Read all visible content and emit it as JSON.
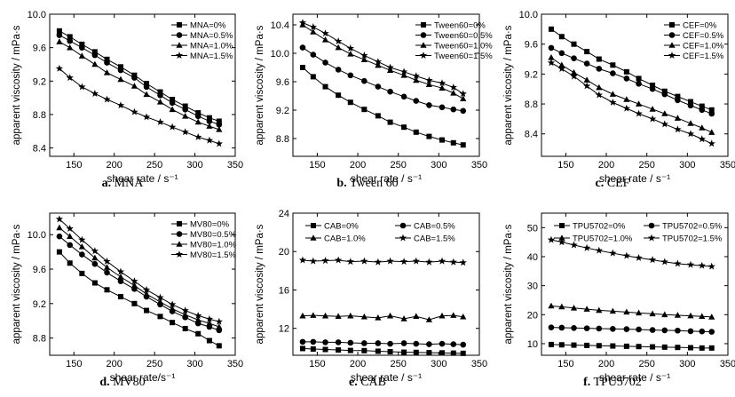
{
  "chart_data": [
    {
      "type": "line",
      "caption_letter": "a.",
      "caption_name": "MNA",
      "xlabel": "shear rate / s⁻¹",
      "ylabel": "apparent viscosity / mPa·s",
      "xlim": [
        120,
        350
      ],
      "ylim": [
        8.3,
        10.0
      ],
      "xticks": [
        150,
        200,
        250,
        300,
        350
      ],
      "yticks": [
        8.4,
        8.8,
        9.2,
        9.6,
        10.0
      ],
      "ytick_decimals": 1,
      "legend_columns": 1,
      "legend": "top-right",
      "x": [
        132,
        145,
        160,
        176,
        191,
        208,
        225,
        240,
        257,
        272,
        288,
        304,
        318,
        330
      ],
      "series": [
        {
          "name": "MNA=0%",
          "marker": "square",
          "values": [
            9.8,
            9.73,
            9.64,
            9.55,
            9.46,
            9.37,
            9.27,
            9.17,
            9.07,
            8.98,
            8.9,
            8.82,
            8.76,
            8.72
          ]
        },
        {
          "name": "MNA=0.5%",
          "marker": "circle",
          "values": [
            9.75,
            9.68,
            9.6,
            9.51,
            9.42,
            9.33,
            9.24,
            9.13,
            9.03,
            8.94,
            8.86,
            8.78,
            8.72,
            8.68
          ]
        },
        {
          "name": "MNA=1.0%",
          "marker": "triangle",
          "values": [
            9.67,
            9.6,
            9.5,
            9.4,
            9.3,
            9.22,
            9.14,
            9.04,
            8.95,
            8.86,
            8.78,
            8.71,
            8.66,
            8.62
          ]
        },
        {
          "name": "MNA=1.5%",
          "marker": "star",
          "values": [
            9.35,
            9.24,
            9.13,
            9.05,
            8.98,
            8.91,
            8.83,
            8.77,
            8.71,
            8.65,
            8.59,
            8.53,
            8.49,
            8.45
          ]
        }
      ]
    },
    {
      "type": "line",
      "caption_letter": "b.",
      "caption_name": "Tween 60",
      "xlabel": "shear rate / s⁻¹",
      "ylabel": "apparent viscosity / mPa·s",
      "xlim": [
        120,
        350
      ],
      "ylim": [
        8.55,
        10.55
      ],
      "xticks": [
        150,
        200,
        250,
        300,
        350
      ],
      "yticks": [
        8.8,
        9.2,
        9.6,
        10.0,
        10.4
      ],
      "ytick_decimals": 1,
      "legend_columns": 1,
      "legend": "top-right",
      "x": [
        132,
        145,
        160,
        176,
        191,
        208,
        225,
        240,
        257,
        272,
        288,
        304,
        318,
        330
      ],
      "series": [
        {
          "name": "Tween60=0%",
          "marker": "square",
          "values": [
            9.8,
            9.67,
            9.53,
            9.41,
            9.31,
            9.21,
            9.12,
            9.03,
            8.96,
            8.89,
            8.83,
            8.78,
            8.74,
            8.71
          ]
        },
        {
          "name": "Tween60=0.5%",
          "marker": "circle",
          "values": [
            10.08,
            9.98,
            9.87,
            9.77,
            9.69,
            9.61,
            9.53,
            9.46,
            9.39,
            9.33,
            9.27,
            9.24,
            9.21,
            9.19
          ]
        },
        {
          "name": "Tween60=1.0%",
          "marker": "triangle",
          "values": [
            10.4,
            10.3,
            10.19,
            10.08,
            9.99,
            9.91,
            9.83,
            9.76,
            9.69,
            9.62,
            9.56,
            9.51,
            9.44,
            9.36
          ]
        },
        {
          "name": "Tween60=1.5%",
          "marker": "star",
          "values": [
            10.43,
            10.37,
            10.28,
            10.17,
            10.07,
            9.97,
            9.88,
            9.8,
            9.74,
            9.68,
            9.62,
            9.58,
            9.52,
            9.43
          ]
        }
      ]
    },
    {
      "type": "line",
      "caption_letter": "c.",
      "caption_name": "CEF",
      "xlabel": "shear rate / s⁻¹",
      "ylabel": "apparent viscosity / mPa·s",
      "xlim": [
        120,
        350
      ],
      "ylim": [
        8.1,
        10.0
      ],
      "xticks": [
        150,
        200,
        250,
        300,
        350
      ],
      "yticks": [
        8.4,
        8.8,
        9.2,
        9.6,
        10.0
      ],
      "ytick_decimals": 1,
      "legend_columns": 1,
      "legend": "top-right",
      "x": [
        132,
        145,
        160,
        176,
        191,
        208,
        225,
        240,
        257,
        272,
        288,
        304,
        318,
        330
      ],
      "series": [
        {
          "name": "CEF=0%",
          "marker": "square",
          "values": [
            9.8,
            9.7,
            9.6,
            9.5,
            9.4,
            9.32,
            9.23,
            9.14,
            9.05,
            8.97,
            8.9,
            8.83,
            8.77,
            8.72
          ]
        },
        {
          "name": "CEF=0.5%",
          "marker": "circle",
          "values": [
            9.55,
            9.48,
            9.41,
            9.34,
            9.27,
            9.21,
            9.14,
            9.07,
            9.0,
            8.93,
            8.85,
            8.78,
            8.72,
            8.67
          ]
        },
        {
          "name": "CEF=1.0%",
          "marker": "triangle",
          "values": [
            9.42,
            9.32,
            9.22,
            9.12,
            9.02,
            8.93,
            8.86,
            8.8,
            8.73,
            8.67,
            8.61,
            8.54,
            8.48,
            8.42
          ]
        },
        {
          "name": "CEF=1.5%",
          "marker": "star",
          "values": [
            9.35,
            9.27,
            9.17,
            9.04,
            8.92,
            8.82,
            8.74,
            8.67,
            8.6,
            8.53,
            8.46,
            8.4,
            8.33,
            8.27
          ]
        }
      ]
    },
    {
      "type": "line",
      "caption_letter": "d.",
      "caption_name": "MV80",
      "xlabel": "shear rate/s⁻¹",
      "ylabel": "apparent viscosity / mPa·s",
      "xlim": [
        120,
        350
      ],
      "ylim": [
        8.6,
        10.25
      ],
      "xticks": [
        150,
        200,
        250,
        300,
        350
      ],
      "yticks": [
        8.8,
        9.2,
        9.6,
        10.0
      ],
      "ytick_decimals": 1,
      "legend_columns": 1,
      "legend": "top-right",
      "x": [
        132,
        145,
        160,
        176,
        191,
        208,
        225,
        240,
        257,
        272,
        288,
        304,
        318,
        330
      ],
      "series": [
        {
          "name": "MV80=0%",
          "marker": "square",
          "values": [
            9.8,
            9.67,
            9.55,
            9.44,
            9.36,
            9.28,
            9.2,
            9.12,
            9.05,
            8.98,
            8.91,
            8.85,
            8.77,
            8.71
          ]
        },
        {
          "name": "MV80=0.5%",
          "marker": "circle",
          "values": [
            9.98,
            9.88,
            9.77,
            9.66,
            9.56,
            9.46,
            9.37,
            9.28,
            9.19,
            9.11,
            9.04,
            8.97,
            8.93,
            8.89
          ]
        },
        {
          "name": "MV80=1.0%",
          "marker": "triangle",
          "values": [
            10.08,
            9.98,
            9.86,
            9.73,
            9.62,
            9.51,
            9.41,
            9.31,
            9.22,
            9.14,
            9.07,
            9.01,
            8.97,
            8.93
          ]
        },
        {
          "name": "MV80=1.5%",
          "marker": "star",
          "values": [
            10.18,
            10.07,
            9.94,
            9.81,
            9.69,
            9.57,
            9.46,
            9.36,
            9.27,
            9.19,
            9.12,
            9.06,
            9.02,
            8.99
          ]
        }
      ]
    },
    {
      "type": "line",
      "caption_letter": "e.",
      "caption_name": "CAB",
      "xlabel": "shear rate / s⁻¹",
      "ylabel": "apparent viscosity / mPa·s",
      "xlim": [
        120,
        350
      ],
      "ylim": [
        9.2,
        24
      ],
      "xticks": [
        150,
        200,
        250,
        300,
        350
      ],
      "yticks": [
        12,
        16,
        20,
        24
      ],
      "ytick_decimals": 0,
      "legend_columns": 2,
      "legend": "top",
      "x": [
        132,
        145,
        160,
        176,
        191,
        208,
        225,
        240,
        257,
        272,
        288,
        304,
        318,
        330
      ],
      "series": [
        {
          "name": "CAB=0%",
          "marker": "square",
          "values": [
            9.9,
            9.85,
            9.8,
            9.75,
            9.7,
            9.68,
            9.62,
            9.57,
            9.52,
            9.5,
            9.47,
            9.45,
            9.42,
            9.4
          ]
        },
        {
          "name": "CAB=0.5%",
          "marker": "circle",
          "values": [
            10.6,
            10.6,
            10.55,
            10.55,
            10.5,
            10.45,
            10.45,
            10.4,
            10.45,
            10.4,
            10.35,
            10.4,
            10.35,
            10.3
          ]
        },
        {
          "name": "CAB=1.0%",
          "marker": "triangle",
          "values": [
            13.3,
            13.35,
            13.3,
            13.25,
            13.3,
            13.2,
            13.1,
            13.3,
            13.0,
            13.25,
            12.9,
            13.3,
            13.35,
            13.2
          ]
        },
        {
          "name": "CAB=1.5%",
          "marker": "star",
          "values": [
            19.1,
            19.0,
            19.05,
            19.1,
            18.95,
            19.0,
            18.9,
            19.0,
            18.95,
            19.0,
            18.9,
            19.0,
            18.9,
            18.85
          ]
        }
      ]
    },
    {
      "type": "line",
      "caption_letter": "f.",
      "caption_name": "TPU5702",
      "xlabel": "shear rate / s⁻¹",
      "ylabel": "apparent viscosity / mPa·s",
      "xlim": [
        120,
        350
      ],
      "ylim": [
        6,
        55
      ],
      "xticks": [
        150,
        200,
        250,
        300,
        350
      ],
      "yticks": [
        10,
        20,
        30,
        40,
        50
      ],
      "ytick_decimals": 0,
      "legend_columns": 2,
      "legend": "top",
      "x": [
        132,
        145,
        160,
        176,
        191,
        208,
        225,
        240,
        257,
        272,
        288,
        304,
        318,
        330
      ],
      "series": [
        {
          "name": "TPU5702=0%",
          "marker": "square",
          "values": [
            9.7,
            9.6,
            9.5,
            9.4,
            9.3,
            9.2,
            9.1,
            9.0,
            8.9,
            8.8,
            8.7,
            8.6,
            8.5,
            8.5
          ]
        },
        {
          "name": "TPU5702=0.5%",
          "marker": "circle",
          "values": [
            15.6,
            15.5,
            15.4,
            15.3,
            15.2,
            15.1,
            15.0,
            14.9,
            14.7,
            14.6,
            14.5,
            14.3,
            14.2,
            14.1
          ]
        },
        {
          "name": "TPU5702=1.0%",
          "marker": "triangle",
          "values": [
            23.0,
            22.7,
            22.3,
            21.9,
            21.5,
            21.2,
            20.9,
            20.6,
            20.3,
            20.0,
            19.8,
            19.6,
            19.4,
            19.2
          ]
        },
        {
          "name": "TPU5702=1.5%",
          "marker": "star",
          "values": [
            45.8,
            45.0,
            44.0,
            43.0,
            42.1,
            41.2,
            40.3,
            39.6,
            38.9,
            38.2,
            37.6,
            37.2,
            36.9,
            36.6
          ]
        }
      ]
    }
  ]
}
